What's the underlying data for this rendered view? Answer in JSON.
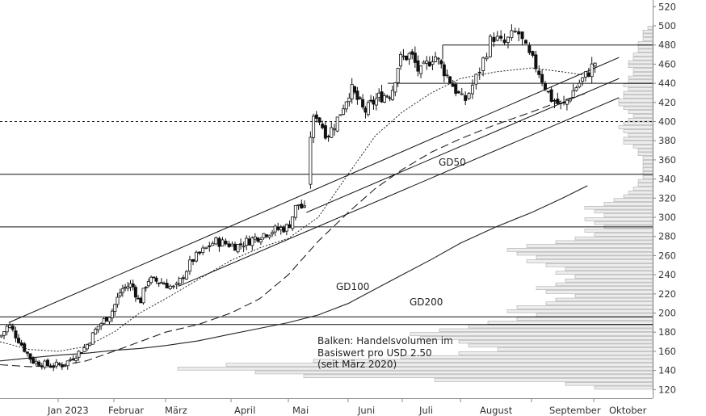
{
  "chart_data": {
    "type": "candlestick",
    "y_axis": {
      "ticks": [
        120,
        140,
        160,
        180,
        200,
        220,
        240,
        260,
        280,
        300,
        320,
        340,
        360,
        380,
        400,
        420,
        440,
        460,
        480,
        500,
        520
      ],
      "range": [
        111,
        527
      ],
      "position": "right"
    },
    "x_axis": {
      "month_labels": [
        "Jan 2023",
        "Februar",
        "März",
        "April",
        "Mai",
        "Juni",
        "Juli",
        "August",
        "September",
        "Oktober"
      ],
      "month_index": [
        1,
        2,
        3,
        4,
        5,
        6,
        7,
        8,
        9,
        10
      ]
    },
    "horizontal_levels": [
      480,
      440,
      400,
      345,
      290,
      196,
      188
    ],
    "dashed_levels": [
      400
    ],
    "moving_average_labels": {
      "gd50": "GD50",
      "gd100": "GD100",
      "gd200": "GD200"
    },
    "annotation": [
      "Balken: Handelsvolumen im",
      "Basiswert pro USD 2.50",
      "(seit März 2020)"
    ],
    "key_prices": [
      {
        "t": 0.0,
        "p": 175
      },
      {
        "t": 0.15,
        "p": 188
      },
      {
        "t": 0.55,
        "p": 150
      },
      {
        "t": 0.85,
        "p": 145
      },
      {
        "t": 1.1,
        "p": 146
      },
      {
        "t": 1.5,
        "p": 165
      },
      {
        "t": 1.7,
        "p": 185
      },
      {
        "t": 1.95,
        "p": 200
      },
      {
        "t": 2.15,
        "p": 225
      },
      {
        "t": 2.35,
        "p": 230
      },
      {
        "t": 2.5,
        "p": 210
      },
      {
        "t": 2.65,
        "p": 235
      },
      {
        "t": 2.95,
        "p": 232
      },
      {
        "t": 3.15,
        "p": 225
      },
      {
        "t": 3.4,
        "p": 255
      },
      {
        "t": 3.75,
        "p": 275
      },
      {
        "t": 4.1,
        "p": 270
      },
      {
        "t": 4.4,
        "p": 278
      },
      {
        "t": 4.65,
        "p": 285
      },
      {
        "t": 5.0,
        "p": 290
      },
      {
        "t": 5.15,
        "p": 315
      },
      {
        "t": 5.3,
        "p": 305
      },
      {
        "t": 5.35,
        "p": 380
      },
      {
        "t": 5.45,
        "p": 410
      },
      {
        "t": 5.65,
        "p": 385
      },
      {
        "t": 5.8,
        "p": 400
      },
      {
        "t": 6.05,
        "p": 435
      },
      {
        "t": 6.3,
        "p": 410
      },
      {
        "t": 6.55,
        "p": 425
      },
      {
        "t": 6.8,
        "p": 430
      },
      {
        "t": 6.95,
        "p": 465
      },
      {
        "t": 7.15,
        "p": 470
      },
      {
        "t": 7.3,
        "p": 450
      },
      {
        "t": 7.55,
        "p": 470
      },
      {
        "t": 7.8,
        "p": 445
      },
      {
        "t": 8.05,
        "p": 420
      },
      {
        "t": 8.25,
        "p": 450
      },
      {
        "t": 8.45,
        "p": 490
      },
      {
        "t": 8.6,
        "p": 480
      },
      {
        "t": 8.8,
        "p": 495
      },
      {
        "t": 8.95,
        "p": 470
      },
      {
        "t": 9.1,
        "p": 455
      },
      {
        "t": 9.3,
        "p": 425
      },
      {
        "t": 9.5,
        "p": 415
      },
      {
        "t": 9.7,
        "p": 435
      },
      {
        "t": 9.9,
        "p": 450
      },
      {
        "t": 10.05,
        "p": 465
      }
    ],
    "gd50": [
      {
        "t": 0.0,
        "p": 170
      },
      {
        "t": 0.5,
        "p": 162
      },
      {
        "t": 1.0,
        "p": 160
      },
      {
        "t": 1.5,
        "p": 165
      },
      {
        "t": 2.0,
        "p": 180
      },
      {
        "t": 2.5,
        "p": 200
      },
      {
        "t": 3.0,
        "p": 215
      },
      {
        "t": 3.5,
        "p": 235
      },
      {
        "t": 4.0,
        "p": 255
      },
      {
        "t": 4.5,
        "p": 268
      },
      {
        "t": 5.0,
        "p": 278
      },
      {
        "t": 5.5,
        "p": 300
      },
      {
        "t": 6.0,
        "p": 345
      },
      {
        "t": 6.5,
        "p": 385
      },
      {
        "t": 7.0,
        "p": 410
      },
      {
        "t": 7.5,
        "p": 430
      },
      {
        "t": 8.0,
        "p": 445
      },
      {
        "t": 8.5,
        "p": 452
      },
      {
        "t": 9.0,
        "p": 456
      },
      {
        "t": 9.5,
        "p": 452
      },
      {
        "t": 9.9,
        "p": 448
      }
    ],
    "gd100": [
      {
        "t": 0.0,
        "p": 146
      },
      {
        "t": 0.5,
        "p": 144
      },
      {
        "t": 1.0,
        "p": 145
      },
      {
        "t": 1.5,
        "p": 150
      },
      {
        "t": 2.0,
        "p": 160
      },
      {
        "t": 2.5,
        "p": 170
      },
      {
        "t": 3.0,
        "p": 180
      },
      {
        "t": 3.5,
        "p": 188
      },
      {
        "t": 4.0,
        "p": 200
      },
      {
        "t": 4.5,
        "p": 215
      },
      {
        "t": 5.0,
        "p": 240
      },
      {
        "t": 5.5,
        "p": 275
      },
      {
        "t": 6.0,
        "p": 305
      },
      {
        "t": 6.5,
        "p": 330
      },
      {
        "t": 7.0,
        "p": 350
      },
      {
        "t": 7.5,
        "p": 368
      },
      {
        "t": 8.0,
        "p": 382
      },
      {
        "t": 8.5,
        "p": 397
      },
      {
        "t": 9.0,
        "p": 410
      },
      {
        "t": 9.5,
        "p": 422
      },
      {
        "t": 9.9,
        "p": 430
      }
    ],
    "gd200": [
      {
        "t": 0.0,
        "p": 150
      },
      {
        "t": 0.5,
        "p": 153
      },
      {
        "t": 1.0,
        "p": 156
      },
      {
        "t": 1.5,
        "p": 158
      },
      {
        "t": 2.0,
        "p": 161
      },
      {
        "t": 2.5,
        "p": 163
      },
      {
        "t": 3.0,
        "p": 166
      },
      {
        "t": 3.5,
        "p": 171
      },
      {
        "t": 4.0,
        "p": 178
      },
      {
        "t": 4.5,
        "p": 184
      },
      {
        "t": 5.0,
        "p": 190
      },
      {
        "t": 5.5,
        "p": 198
      },
      {
        "t": 6.0,
        "p": 210
      },
      {
        "t": 6.5,
        "p": 225
      },
      {
        "t": 7.0,
        "p": 240
      },
      {
        "t": 7.5,
        "p": 256
      },
      {
        "t": 8.0,
        "p": 273
      },
      {
        "t": 8.5,
        "p": 290
      },
      {
        "t": 9.0,
        "p": 305
      },
      {
        "t": 9.5,
        "p": 320
      },
      {
        "t": 9.9,
        "p": 333
      }
    ],
    "trend_channels": [
      {
        "p1": {
          "t": 0.15,
          "p": 190
        },
        "p2": {
          "t": 10.4,
          "p": 467
        }
      },
      {
        "p1": {
          "t": 3.2,
          "p": 228
        },
        "p2": {
          "t": 10.4,
          "p": 425
        }
      },
      {
        "p1": {
          "t": 5.3,
          "p": 305
        },
        "p2": {
          "t": 10.4,
          "p": 445
        }
      }
    ],
    "volume_profile": [
      {
        "p": 122,
        "v": 12
      },
      {
        "p": 126,
        "v": 18
      },
      {
        "p": 130,
        "v": 45
      },
      {
        "p": 134,
        "v": 72
      },
      {
        "p": 138,
        "v": 82
      },
      {
        "p": 142,
        "v": 98
      },
      {
        "p": 146,
        "v": 88
      },
      {
        "p": 150,
        "v": 70
      },
      {
        "p": 154,
        "v": 52
      },
      {
        "p": 158,
        "v": 40
      },
      {
        "p": 162,
        "v": 32
      },
      {
        "p": 166,
        "v": 38
      },
      {
        "p": 170,
        "v": 40
      },
      {
        "p": 174,
        "v": 48
      },
      {
        "p": 178,
        "v": 50
      },
      {
        "p": 182,
        "v": 44
      },
      {
        "p": 186,
        "v": 38
      },
      {
        "p": 190,
        "v": 34
      },
      {
        "p": 194,
        "v": 28
      },
      {
        "p": 198,
        "v": 24
      },
      {
        "p": 202,
        "v": 30
      },
      {
        "p": 206,
        "v": 28
      },
      {
        "p": 210,
        "v": 22
      },
      {
        "p": 214,
        "v": 20
      },
      {
        "p": 218,
        "v": 16
      },
      {
        "p": 222,
        "v": 22
      },
      {
        "p": 226,
        "v": 24
      },
      {
        "p": 230,
        "v": 20
      },
      {
        "p": 234,
        "v": 18
      },
      {
        "p": 238,
        "v": 16
      },
      {
        "p": 242,
        "v": 20
      },
      {
        "p": 246,
        "v": 18
      },
      {
        "p": 250,
        "v": 22
      },
      {
        "p": 254,
        "v": 26
      },
      {
        "p": 258,
        "v": 24
      },
      {
        "p": 262,
        "v": 28
      },
      {
        "p": 266,
        "v": 30
      },
      {
        "p": 270,
        "v": 26
      },
      {
        "p": 274,
        "v": 20
      },
      {
        "p": 278,
        "v": 16
      },
      {
        "p": 282,
        "v": 12
      },
      {
        "p": 286,
        "v": 14
      },
      {
        "p": 290,
        "v": 10
      },
      {
        "p": 294,
        "v": 12
      },
      {
        "p": 298,
        "v": 14
      },
      {
        "p": 302,
        "v": 10
      },
      {
        "p": 306,
        "v": 12
      },
      {
        "p": 310,
        "v": 14
      },
      {
        "p": 314,
        "v": 10
      },
      {
        "p": 318,
        "v": 8
      },
      {
        "p": 322,
        "v": 6
      },
      {
        "p": 326,
        "v": 5
      },
      {
        "p": 330,
        "v": 4
      },
      {
        "p": 334,
        "v": 3
      },
      {
        "p": 338,
        "v": 3
      },
      {
        "p": 342,
        "v": 2
      },
      {
        "p": 346,
        "v": 2
      },
      {
        "p": 350,
        "v": 2
      },
      {
        "p": 354,
        "v": 2
      },
      {
        "p": 358,
        "v": 2
      },
      {
        "p": 362,
        "v": 2
      },
      {
        "p": 366,
        "v": 3
      },
      {
        "p": 370,
        "v": 3
      },
      {
        "p": 374,
        "v": 4
      },
      {
        "p": 378,
        "v": 6
      },
      {
        "p": 382,
        "v": 6
      },
      {
        "p": 386,
        "v": 5
      },
      {
        "p": 390,
        "v": 6
      },
      {
        "p": 394,
        "v": 7
      },
      {
        "p": 398,
        "v": 6
      },
      {
        "p": 402,
        "v": 5
      },
      {
        "p": 406,
        "v": 4
      },
      {
        "p": 410,
        "v": 5
      },
      {
        "p": 414,
        "v": 6
      },
      {
        "p": 418,
        "v": 7
      },
      {
        "p": 422,
        "v": 7
      },
      {
        "p": 426,
        "v": 6
      },
      {
        "p": 430,
        "v": 6
      },
      {
        "p": 434,
        "v": 5
      },
      {
        "p": 438,
        "v": 6
      },
      {
        "p": 442,
        "v": 5
      },
      {
        "p": 446,
        "v": 5
      },
      {
        "p": 450,
        "v": 4
      },
      {
        "p": 454,
        "v": 4
      },
      {
        "p": 458,
        "v": 5
      },
      {
        "p": 462,
        "v": 5
      },
      {
        "p": 466,
        "v": 4
      },
      {
        "p": 470,
        "v": 4
      },
      {
        "p": 474,
        "v": 3
      },
      {
        "p": 478,
        "v": 3
      },
      {
        "p": 482,
        "v": 3
      },
      {
        "p": 486,
        "v": 2
      },
      {
        "p": 490,
        "v": 2
      },
      {
        "p": 494,
        "v": 2
      },
      {
        "p": 498,
        "v": 1
      }
    ],
    "grid": false,
    "legend": "none"
  }
}
